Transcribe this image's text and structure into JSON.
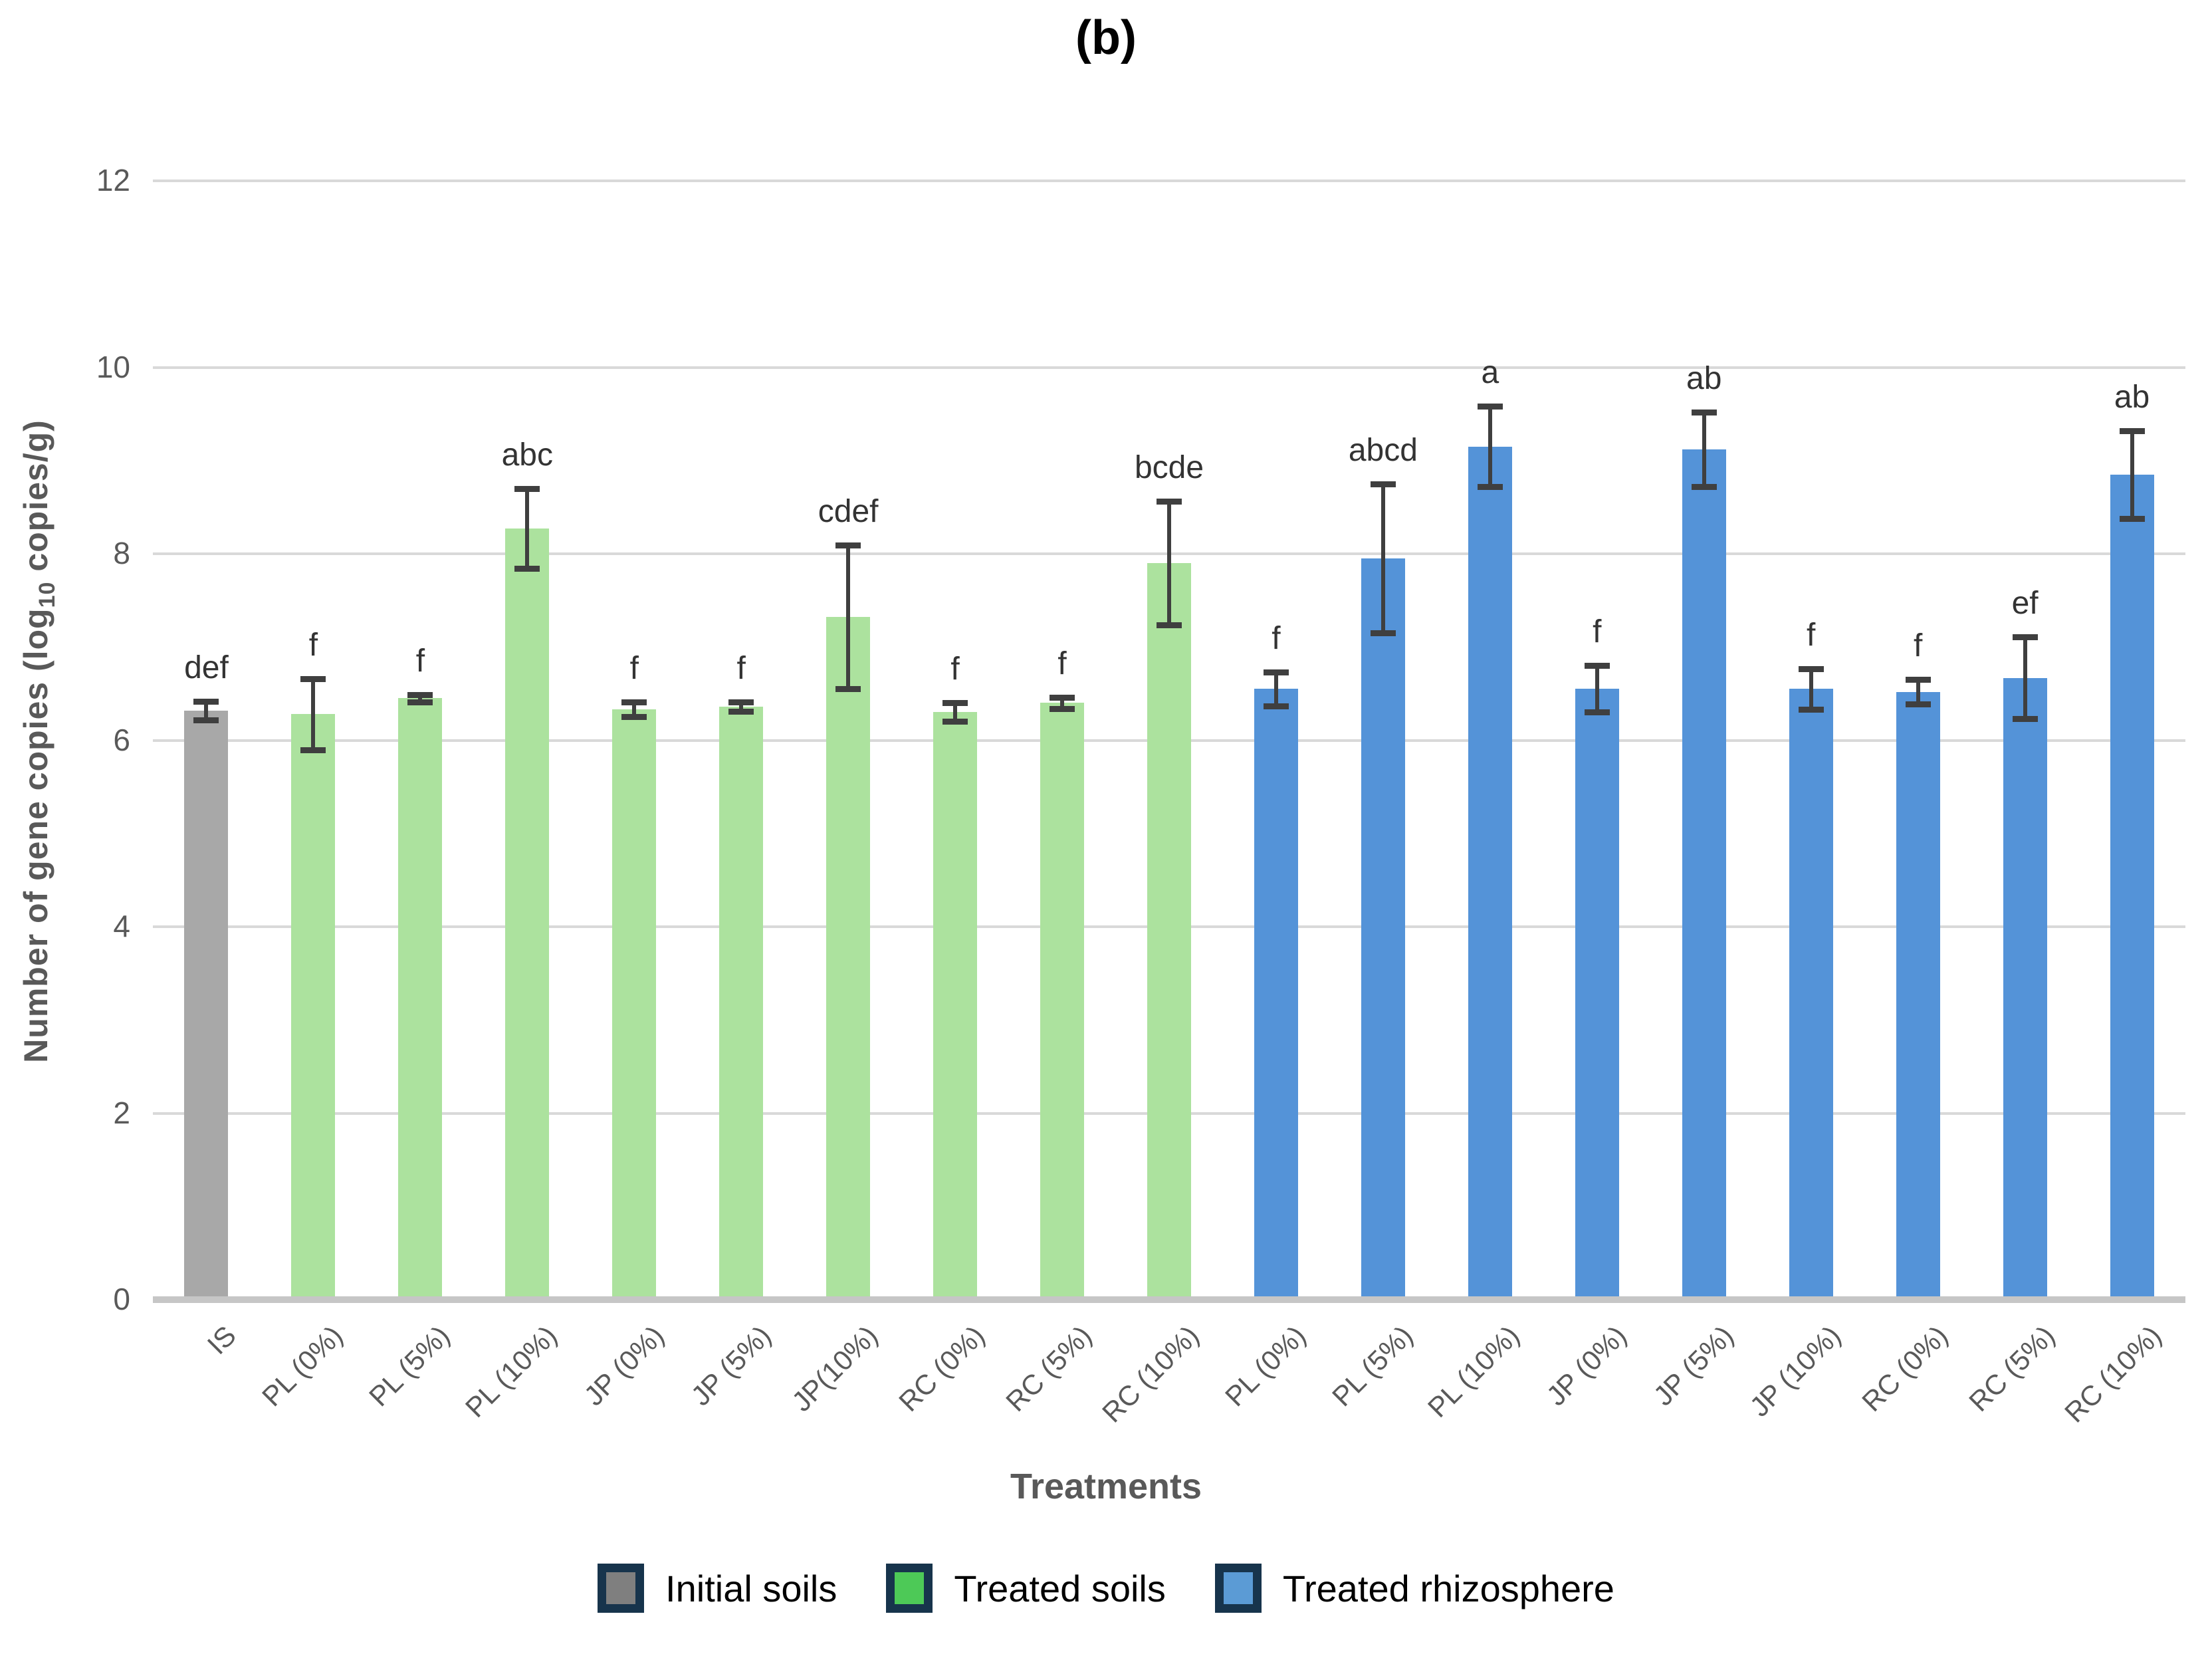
{
  "title": "(b)",
  "x_axis": {
    "title": "Treatments"
  },
  "y_axis": {
    "label_pre": "Number of gene copies (log",
    "label_sub": "10",
    "label_post": " copies/g)",
    "ticks": [
      0,
      2,
      4,
      6,
      8,
      10,
      12
    ],
    "min": 0,
    "max": 12
  },
  "legend": {
    "items": [
      {
        "label": "Initial soils",
        "color": "#7F7F7F"
      },
      {
        "label": "Treated soils",
        "color": "#4DC957"
      },
      {
        "label": "Treated rhizosphere",
        "color": "#5B9BD5"
      }
    ],
    "border_color": "#17344C"
  },
  "colors": {
    "initial_bar": "#A8A8A8",
    "soil_bar": "#ACE29E",
    "rhizo_bar": "#5493D8",
    "gridline": "#D9D9D9",
    "baseline": "#C6C6C6",
    "axis_text": "#595959",
    "error_bar": "#3F3F3F",
    "annotation": "#333333"
  },
  "chart_data": {
    "type": "bar",
    "title": "(b)",
    "xlabel": "Treatments",
    "ylabel": "Number of gene copies (log10 copies/g)",
    "ylim": [
      0,
      12
    ],
    "grid": true,
    "legend_position": "bottom",
    "bars": [
      {
        "label": "IS",
        "group": "initial",
        "value": 6.32,
        "error": 0.1,
        "letter": "def"
      },
      {
        "label": "PL (0%)",
        "group": "soil",
        "value": 6.28,
        "error": 0.38,
        "letter": "f"
      },
      {
        "label": "PL (5%)",
        "group": "soil",
        "value": 6.45,
        "error": 0.04,
        "letter": "f"
      },
      {
        "label": "PL (10%)",
        "group": "soil",
        "value": 8.27,
        "error": 0.43,
        "letter": "abc"
      },
      {
        "label": "JP (0%)",
        "group": "soil",
        "value": 6.33,
        "error": 0.08,
        "letter": "f"
      },
      {
        "label": "JP (5%)",
        "group": "soil",
        "value": 6.36,
        "error": 0.05,
        "letter": "f"
      },
      {
        "label": "JP(10%)",
        "group": "soil",
        "value": 7.32,
        "error": 0.77,
        "letter": "cdef"
      },
      {
        "label": "RC (0%)",
        "group": "soil",
        "value": 6.3,
        "error": 0.1,
        "letter": "f"
      },
      {
        "label": "RC (5%)",
        "group": "soil",
        "value": 6.4,
        "error": 0.06,
        "letter": "f"
      },
      {
        "label": "RC (10%)",
        "group": "soil",
        "value": 7.9,
        "error": 0.66,
        "letter": "bcde"
      },
      {
        "label": "PL (0%)",
        "group": "rhizo",
        "value": 6.55,
        "error": 0.18,
        "letter": "f"
      },
      {
        "label": "PL (5%)",
        "group": "rhizo",
        "value": 7.95,
        "error": 0.8,
        "letter": "abcd"
      },
      {
        "label": "PL (10%)",
        "group": "rhizo",
        "value": 9.15,
        "error": 0.43,
        "letter": "a"
      },
      {
        "label": "JP (0%)",
        "group": "rhizo",
        "value": 6.55,
        "error": 0.25,
        "letter": "f"
      },
      {
        "label": "JP (5%)",
        "group": "rhizo",
        "value": 9.12,
        "error": 0.4,
        "letter": "ab"
      },
      {
        "label": "JP (10%)",
        "group": "rhizo",
        "value": 6.55,
        "error": 0.22,
        "letter": "f"
      },
      {
        "label": "RC (0%)",
        "group": "rhizo",
        "value": 6.52,
        "error": 0.13,
        "letter": "f"
      },
      {
        "label": "RC (5%)",
        "group": "rhizo",
        "value": 6.67,
        "error": 0.44,
        "letter": "ef"
      },
      {
        "label": "RC (10%)",
        "group": "rhizo",
        "value": 8.85,
        "error": 0.47,
        "letter": "ab"
      }
    ]
  }
}
